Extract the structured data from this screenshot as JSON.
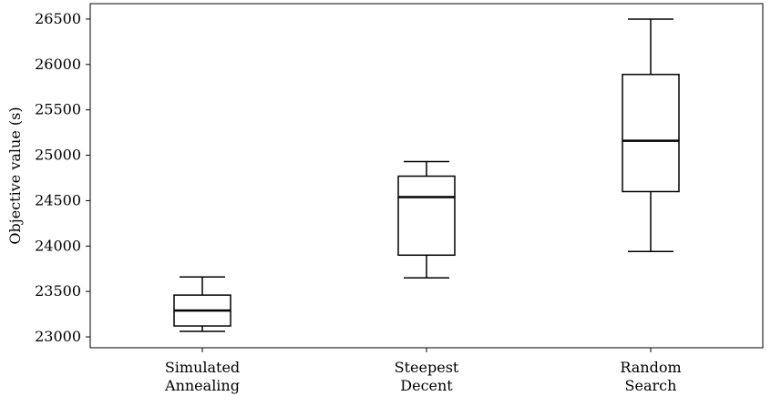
{
  "chart_data": {
    "type": "box",
    "title": "",
    "xlabel": "",
    "ylabel": "Objective value (s)",
    "ylim": [
      22880,
      26670
    ],
    "yticks": [
      23000,
      23500,
      24000,
      24500,
      25000,
      25500,
      26000,
      26500
    ],
    "grid": false,
    "categories": [
      [
        "Simulated",
        "Annealing"
      ],
      [
        "Steepest",
        "Decent"
      ],
      [
        "Random",
        "Search"
      ]
    ],
    "boxes": [
      {
        "whisker_low": 23060,
        "q1": 23120,
        "median": 23290,
        "q3": 23460,
        "whisker_high": 23660
      },
      {
        "whisker_low": 23650,
        "q1": 23900,
        "median": 24540,
        "q3": 24770,
        "whisker_high": 24930
      },
      {
        "whisker_low": 23940,
        "q1": 24600,
        "median": 25160,
        "q3": 25890,
        "whisker_high": 26500
      }
    ]
  }
}
